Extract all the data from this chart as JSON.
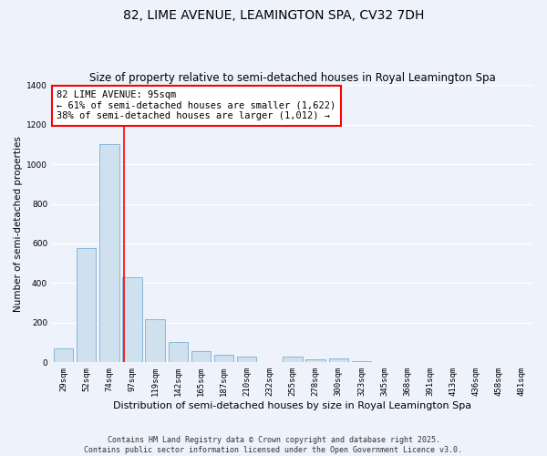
{
  "title": "82, LIME AVENUE, LEAMINGTON SPA, CV32 7DH",
  "subtitle": "Size of property relative to semi-detached houses in Royal Leamington Spa",
  "xlabel": "Distribution of semi-detached houses by size in Royal Leamington Spa",
  "ylabel": "Number of semi-detached properties",
  "bar_labels": [
    "29sqm",
    "52sqm",
    "74sqm",
    "97sqm",
    "119sqm",
    "142sqm",
    "165sqm",
    "187sqm",
    "210sqm",
    "232sqm",
    "255sqm",
    "278sqm",
    "300sqm",
    "323sqm",
    "345sqm",
    "368sqm",
    "391sqm",
    "413sqm",
    "436sqm",
    "458sqm",
    "481sqm"
  ],
  "bar_values": [
    70,
    575,
    1100,
    430,
    220,
    105,
    55,
    40,
    30,
    0,
    30,
    15,
    20,
    5,
    0,
    0,
    0,
    0,
    0,
    0,
    0
  ],
  "bar_color": "#cfe0ef",
  "bar_edge_color": "#7bafd4",
  "vline_x_index": 3,
  "vline_color": "red",
  "annotation_title": "82 LIME AVENUE: 95sqm",
  "annotation_line1": "← 61% of semi-detached houses are smaller (1,622)",
  "annotation_line2": "38% of semi-detached houses are larger (1,012) →",
  "annotation_box_color": "white",
  "annotation_box_edge": "red",
  "ylim": [
    0,
    1400
  ],
  "yticks": [
    0,
    200,
    400,
    600,
    800,
    1000,
    1200,
    1400
  ],
  "footer_line1": "Contains HM Land Registry data © Crown copyright and database right 2025.",
  "footer_line2": "Contains public sector information licensed under the Open Government Licence v3.0.",
  "background_color": "#eef2fb",
  "grid_color": "white",
  "title_fontsize": 10,
  "subtitle_fontsize": 8.5,
  "xlabel_fontsize": 8,
  "ylabel_fontsize": 7.5,
  "tick_fontsize": 6.5,
  "annotation_fontsize": 7.5,
  "footer_fontsize": 6
}
